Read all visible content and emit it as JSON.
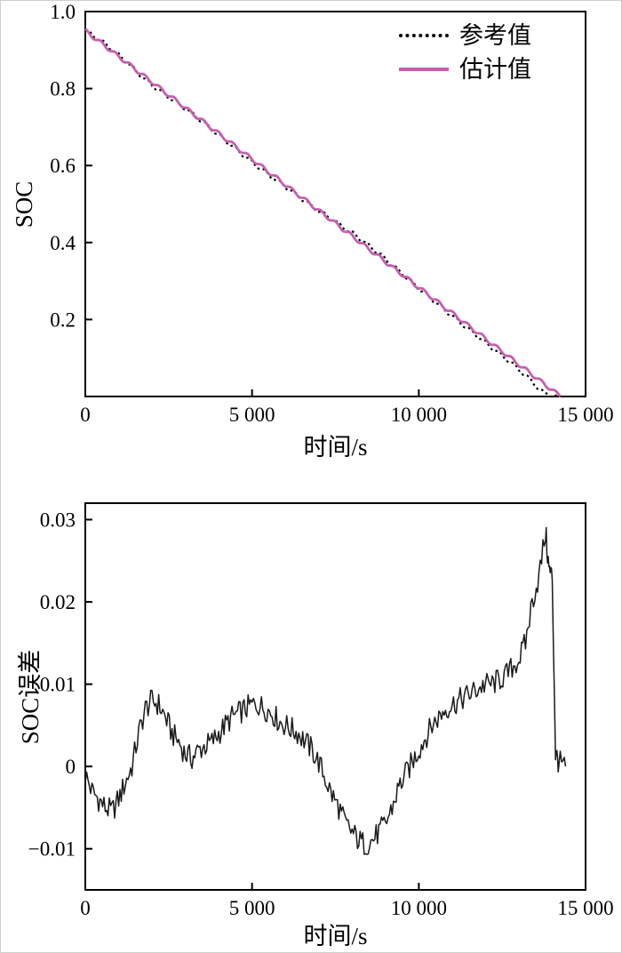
{
  "colors": {
    "reference": "#000000",
    "estimate": "#c65fb0",
    "error": "#1a1a1a",
    "axis": "#000000",
    "background": "#ffffff"
  },
  "chart_data": [
    {
      "type": "line",
      "title": "",
      "xlabel": "时间/s",
      "ylabel": "SOC",
      "xlim": [
        0,
        15000
      ],
      "ylim": [
        0,
        1.0
      ],
      "xticks": [
        0,
        5000,
        10000,
        15000
      ],
      "xtick_labels": [
        "0",
        "5 000",
        "10 000",
        "15 000"
      ],
      "yticks": [
        0.2,
        0.4,
        0.6,
        0.8,
        1.0
      ],
      "ytick_labels": [
        "0.2",
        "0.4",
        "0.6",
        "0.8",
        "1.0"
      ],
      "grid": false,
      "texture": "stepped",
      "legend": {
        "position": "top-right",
        "frame": false,
        "entries": [
          {
            "label": "参考值",
            "style": "dotted",
            "color": "#000000"
          },
          {
            "label": "估计值",
            "style": "solid",
            "color": "#c65fb0"
          }
        ]
      },
      "x": [
        0,
        250,
        500,
        750,
        1000,
        1250,
        1500,
        1750,
        2000,
        2250,
        2500,
        2750,
        3000,
        3250,
        3500,
        3750,
        4000,
        4250,
        4500,
        4750,
        5000,
        5250,
        5500,
        5750,
        6000,
        6250,
        6500,
        6750,
        7000,
        7250,
        7500,
        7750,
        8000,
        8250,
        8500,
        8750,
        9000,
        9250,
        9500,
        9750,
        10000,
        10250,
        10500,
        10750,
        11000,
        11250,
        11500,
        11750,
        12000,
        12250,
        12500,
        12750,
        13000,
        13250,
        13500,
        13750,
        14000,
        14250
      ],
      "series": [
        {
          "name": "参考值",
          "key": "reference",
          "style": "dotted",
          "color": "#000000",
          "values": [
            0.951,
            0.937,
            0.922,
            0.905,
            0.887,
            0.868,
            0.848,
            0.827,
            0.809,
            0.793,
            0.778,
            0.763,
            0.748,
            0.732,
            0.715,
            0.697,
            0.679,
            0.662,
            0.644,
            0.626,
            0.609,
            0.593,
            0.576,
            0.561,
            0.545,
            0.529,
            0.513,
            0.497,
            0.482,
            0.469,
            0.454,
            0.439,
            0.425,
            0.409,
            0.392,
            0.375,
            0.357,
            0.338,
            0.319,
            0.3,
            0.281,
            0.263,
            0.245,
            0.227,
            0.209,
            0.192,
            0.174,
            0.158,
            0.14,
            0.123,
            0.106,
            0.089,
            0.07,
            0.051,
            0.029,
            0.009,
            0.0,
            0.0
          ]
        },
        {
          "name": "估计值",
          "key": "estimate",
          "style": "solid",
          "color": "#c65fb0",
          "values": [
            0.95,
            0.933,
            0.917,
            0.9,
            0.883,
            0.867,
            0.85,
            0.833,
            0.817,
            0.8,
            0.783,
            0.767,
            0.75,
            0.733,
            0.717,
            0.7,
            0.683,
            0.667,
            0.65,
            0.633,
            0.617,
            0.6,
            0.583,
            0.567,
            0.55,
            0.533,
            0.517,
            0.5,
            0.483,
            0.467,
            0.45,
            0.433,
            0.417,
            0.4,
            0.383,
            0.367,
            0.35,
            0.333,
            0.317,
            0.3,
            0.283,
            0.267,
            0.25,
            0.233,
            0.217,
            0.2,
            0.183,
            0.167,
            0.15,
            0.133,
            0.117,
            0.1,
            0.083,
            0.067,
            0.05,
            0.033,
            0.017,
            0.0
          ]
        }
      ]
    },
    {
      "type": "line",
      "title": "",
      "xlabel": "时间/s",
      "ylabel": "SOC误差",
      "xlim": [
        0,
        15000
      ],
      "ylim": [
        -0.015,
        0.032
      ],
      "xticks": [
        0,
        5000,
        10000,
        15000
      ],
      "xtick_labels": [
        "0",
        "5 000",
        "10 000",
        "15 000"
      ],
      "yticks": [
        -0.01,
        0,
        0.01,
        0.02,
        0.03
      ],
      "ytick_labels": [
        "−0.01",
        "0",
        "0.01",
        "0.02",
        "0.03"
      ],
      "grid": false,
      "texture": "noisy",
      "x": [
        0,
        200,
        400,
        600,
        800,
        1000,
        1200,
        1400,
        1600,
        1800,
        2000,
        2200,
        2400,
        2600,
        2800,
        3000,
        3200,
        3400,
        3600,
        3800,
        4000,
        4200,
        4400,
        4600,
        4800,
        5000,
        5200,
        5400,
        5600,
        5800,
        6000,
        6200,
        6400,
        6600,
        6800,
        7000,
        7200,
        7400,
        7600,
        7800,
        8000,
        8200,
        8400,
        8600,
        8800,
        9000,
        9200,
        9400,
        9600,
        9800,
        10000,
        10200,
        10400,
        10600,
        10800,
        11000,
        11200,
        11400,
        11600,
        11800,
        12000,
        12200,
        12400,
        12600,
        12800,
        13000,
        13200,
        13400,
        13600,
        13800,
        13900,
        14000,
        14100,
        14200,
        14400
      ],
      "series": [
        {
          "name": "SOC误差",
          "key": "error",
          "style": "solid",
          "color": "#1a1a1a",
          "values": [
            -0.001,
            -0.003,
            -0.004,
            -0.005,
            -0.0055,
            -0.004,
            -0.002,
            0.0,
            0.004,
            0.007,
            0.008,
            0.0075,
            0.006,
            0.004,
            0.003,
            0.0015,
            0.001,
            0.002,
            0.0025,
            0.003,
            0.004,
            0.005,
            0.006,
            0.0065,
            0.007,
            0.0075,
            0.0075,
            0.007,
            0.0065,
            0.0055,
            0.005,
            0.0045,
            0.004,
            0.003,
            0.002,
            0.0005,
            -0.0015,
            -0.0035,
            -0.005,
            -0.007,
            -0.008,
            -0.009,
            -0.0095,
            -0.009,
            -0.008,
            -0.007,
            -0.005,
            -0.0025,
            -0.001,
            0.0005,
            0.002,
            0.0035,
            0.005,
            0.006,
            0.007,
            0.0075,
            0.008,
            0.0085,
            0.009,
            0.0095,
            0.01,
            0.01,
            0.0105,
            0.011,
            0.012,
            0.013,
            0.015,
            0.02,
            0.023,
            0.0285,
            0.024,
            0.023,
            0.0015,
            0.0005,
            0.0
          ]
        }
      ]
    }
  ]
}
